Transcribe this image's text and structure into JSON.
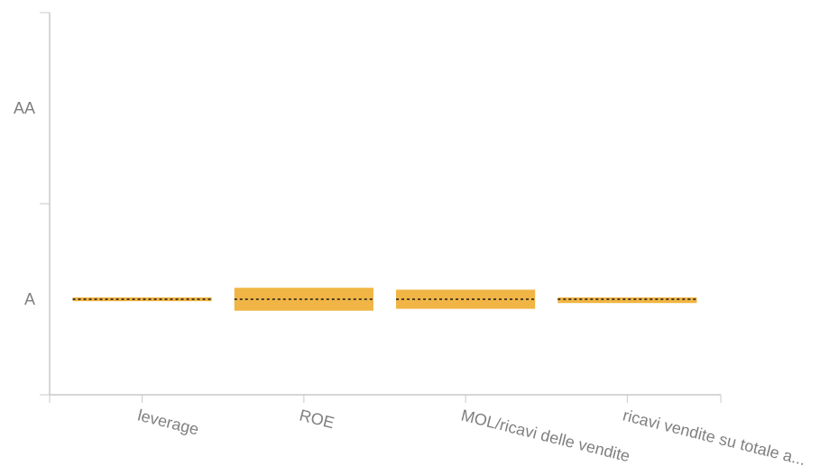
{
  "chart_data": {
    "type": "bar",
    "title": "",
    "xlabel": "",
    "ylabel": "",
    "categories": [
      "leverage",
      "ROE",
      "MOL/ricavi delle vendite",
      "ricavi vendite su totale a..."
    ],
    "y_tick_labels": [
      "A",
      "AA"
    ],
    "y_tick_values": [
      1,
      2
    ],
    "ylim": [
      0.5,
      2.5
    ],
    "series": [
      {
        "low": [
          0.99,
          0.94,
          0.95,
          0.98
        ],
        "high": [
          1.01,
          1.06,
          1.05,
          1.01
        ],
        "median": [
          1,
          1,
          1,
          1
        ],
        "color": "#f0b544"
      }
    ],
    "grid": false,
    "legend": false
  }
}
